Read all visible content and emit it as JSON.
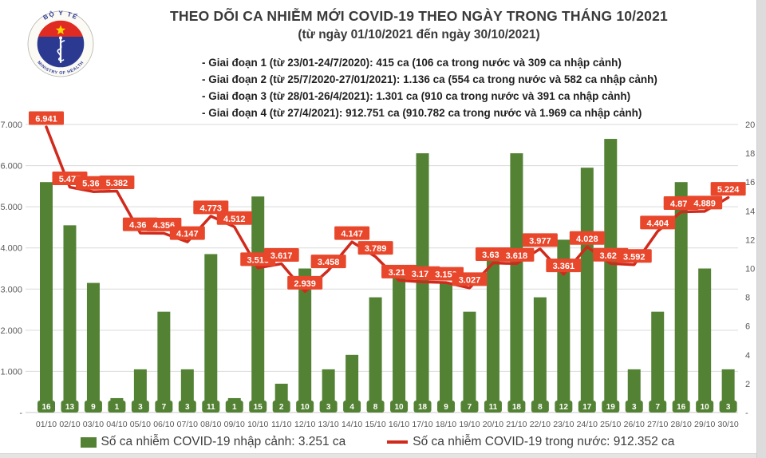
{
  "header": {
    "title": "THEO DÕI CA NHIỄM MỚI COVID-19 THEO NGÀY TRONG THÁNG 10/2021",
    "subtitle": "(từ ngày 01/10/2021 đến ngày 30/10/2021)",
    "logo": {
      "top_text": "BỘ Y TẾ",
      "bottom_text": "MINISTRY OF HEALTH"
    },
    "notes": [
      "- Giai đoạn 1 (từ 23/01-24/7/2020): 415 ca (106 ca trong nước và 309 ca nhập cảnh)",
      "- Giai đoạn 2 (từ 25/7/2020-27/01/2021): 1.136 ca (554 ca trong nước và 582 ca nhập cảnh)",
      "- Giai đoạn 3 (từ 28/01-26/4/2021): 1.301 ca (910 ca trong nước và 391 ca nhập cảnh)",
      "- Giai đoạn 4 (từ 27/4/2021): 912.751 ca (910.782 ca trong nước và 1.969 ca nhập cảnh)"
    ]
  },
  "chart_data": {
    "type": "bar+line",
    "title": "THEO DÕI CA NHIỄM MỚI COVID-19 THEO NGÀY TRONG THÁNG 10/2021",
    "categories": [
      "01/10",
      "02/10",
      "03/10",
      "04/10",
      "05/10",
      "06/10",
      "07/10",
      "08/10",
      "09/10",
      "10/10",
      "11/10",
      "12/10",
      "13/10",
      "14/10",
      "15/10",
      "16/10",
      "17/10",
      "18/10",
      "19/10",
      "20/10",
      "21/10",
      "22/10",
      "23/10",
      "24/10",
      "25/10",
      "26/10",
      "27/10",
      "28/10",
      "29/10",
      "30/10"
    ],
    "series": [
      {
        "name": "Số ca nhiễm COVID-19 nhập cảnh",
        "type": "bar",
        "axis": "right",
        "color": "#548235",
        "values": [
          16,
          13,
          9,
          1,
          3,
          7,
          3,
          11,
          1,
          15,
          2,
          10,
          3,
          4,
          8,
          10,
          18,
          9,
          7,
          11,
          18,
          8,
          12,
          17,
          19,
          3,
          7,
          16,
          10,
          3
        ]
      },
      {
        "name": "Số ca nhiễm COVID-19 trong nước",
        "type": "line",
        "axis": "left",
        "color": "#d02a1c",
        "label_bg": "#e8472b",
        "values": [
          6941,
          5477,
          5367,
          5382,
          4360,
          4356,
          4147,
          4773,
          4512,
          3513,
          3617,
          2939,
          3458,
          4147,
          3789,
          3211,
          3175,
          3159,
          3027,
          3635,
          3618,
          3977,
          3361,
          4028,
          3620,
          3592,
          4404,
          4876,
          4889,
          5224
        ],
        "labels": [
          "6.941",
          "5.477",
          "5.367",
          "5.382",
          "4.360",
          "4.356",
          "4.147",
          "4.773",
          "4.512",
          "3.513",
          "3.617",
          "2.939",
          "3.458",
          "4.147",
          "3.789",
          "3.211",
          "3.175",
          "3.159",
          "3.027",
          "3.635",
          "3.618",
          "3.977",
          "3.361",
          "4.028",
          "3.620",
          "3.592",
          "4.404",
          "4.876",
          "4.889",
          "5.224"
        ]
      }
    ],
    "left_axis": {
      "min": 0,
      "max": 7000,
      "ticks": [
        {
          "label": "7.000",
          "value": 7000
        },
        {
          "label": "6.000",
          "value": 6000
        },
        {
          "label": "5.000",
          "value": 5000
        },
        {
          "label": "4.000",
          "value": 4000
        },
        {
          "label": "3.000",
          "value": 3000
        },
        {
          "label": "2.000",
          "value": 2000
        },
        {
          "label": "1.000",
          "value": 1000
        },
        {
          "label": "-",
          "value": 0
        }
      ]
    },
    "right_axis": {
      "min": 0,
      "max": 20,
      "ticks": [
        {
          "label": "20",
          "value": 20
        },
        {
          "label": "18",
          "value": 18
        },
        {
          "label": "16",
          "value": 16
        },
        {
          "label": "14",
          "value": 14
        },
        {
          "label": "12",
          "value": 12
        },
        {
          "label": "10",
          "value": 10
        },
        {
          "label": "8",
          "value": 8
        },
        {
          "label": "6",
          "value": 6
        },
        {
          "label": "4",
          "value": 4
        },
        {
          "label": "2",
          "value": 2
        },
        {
          "label": "-",
          "value": 0
        }
      ]
    },
    "grid": true,
    "legend_position": "bottom",
    "legend": [
      {
        "swatch": "bar",
        "label": "Số ca nhiễm COVID-19 nhập cảnh: 3.251 ca"
      },
      {
        "swatch": "line",
        "label": "Số ca nhiễm COVID-19 trong nước: 912.352 ca"
      }
    ]
  }
}
